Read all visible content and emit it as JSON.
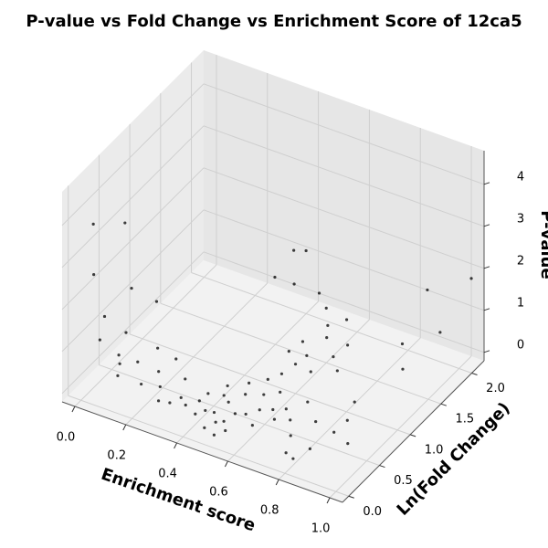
{
  "chart_data": {
    "type": "scatter3d",
    "title": "P-value vs Fold Change vs Enrichment Score of 12ca5",
    "x_label": "Enrichment score",
    "y_label": "Ln(Fold Change)",
    "z_label": "P-value",
    "color": "#000000",
    "grid": true,
    "xlim": [
      -0.05,
      1.05
    ],
    "ylim": [
      -0.1,
      2.2
    ],
    "zlim": [
      -0.2,
      4.8
    ],
    "xticks": [
      {
        "value": 0,
        "label": "0.0"
      },
      0.2,
      0.4,
      0.6,
      0.8,
      {
        "value": 1,
        "label": "1.0"
      }
    ],
    "yticks": [
      {
        "value": 0,
        "label": "0.0"
      },
      0.5,
      {
        "value": 1,
        "label": "1.0"
      },
      1.5,
      {
        "value": 2,
        "label": "2.0"
      }
    ],
    "zticks": [
      0,
      1,
      2,
      3,
      4
    ],
    "x": [
      0.45,
      0.5,
      0.52,
      0.48,
      0.55,
      0.42,
      0.58,
      0.47,
      0.5,
      0.53,
      0.4,
      0.6,
      0.38,
      0.44,
      0.56,
      0.62,
      0.35,
      0.65,
      0.46,
      0.51,
      0.49,
      0.54,
      0.57,
      0.6,
      0.43,
      0.39,
      0.66,
      0.7,
      0.32,
      0.3,
      0.6,
      0.62,
      0.58,
      0.65,
      0.7,
      0.55,
      0.63,
      0.68,
      0.72,
      0.6,
      0.66,
      0.74,
      0.05,
      0.1,
      0.15,
      0.2,
      0.25,
      0.08,
      0.12,
      0.18,
      0.22,
      0.28,
      0.02,
      0.3,
      0.14,
      0.24,
      0.75,
      0.8,
      0.85,
      0.9,
      0.95,
      0.78,
      0.88,
      0.82,
      0.92,
      0.72,
      0.5,
      0.45,
      0.85,
      0.9,
      0.95,
      0.4,
      0.35,
      0.0,
      0.1,
      0.4,
      1.0,
      0.9,
      0.05,
      0.15,
      0.2
    ],
    "y": [
      0.3,
      0.25,
      0.35,
      0.2,
      0.4,
      0.28,
      0.5,
      0.45,
      0.6,
      0.15,
      0.2,
      0.3,
      0.35,
      0.5,
      0.65,
      0.55,
      0.25,
      0.45,
      0.1,
      0.05,
      0.7,
      0.8,
      0.9,
      0.75,
      0.6,
      0.45,
      0.6,
      0.5,
      0.3,
      0.2,
      1.0,
      1.1,
      1.2,
      1.3,
      1.2,
      1.1,
      1.4,
      1.5,
      1.35,
      1.5,
      1.0,
      1.1,
      0.1,
      0.2,
      0.3,
      0.15,
      0.25,
      0.4,
      0.1,
      0.5,
      0.35,
      0.1,
      0.3,
      0.45,
      0.05,
      0.55,
      0.3,
      0.5,
      0.2,
      0.6,
      0.4,
      0.1,
      0.8,
      0.05,
      0.3,
      0.7,
      1.8,
      1.6,
      1.7,
      1.5,
      1.9,
      2.0,
      1.7,
      0.2,
      0.3,
      1.8,
      2.2,
      1.9,
      0.0,
      0.2,
      0.4
    ],
    "z": [
      0.05,
      0.02,
      0.1,
      0.03,
      0.08,
      0.06,
      0.1,
      0.12,
      0.15,
      0.01,
      0.05,
      0.07,
      0.1,
      0.14,
      0.2,
      0.12,
      0.08,
      0.1,
      0.0,
      0.01,
      0.25,
      0.3,
      0.35,
      0.2,
      0.2,
      0.15,
      0.15,
      0.12,
      0.12,
      0.1,
      0.5,
      0.6,
      0.7,
      0.8,
      0.6,
      0.55,
      0.9,
      1.0,
      0.7,
      1.1,
      0.45,
      0.5,
      1.2,
      0.8,
      0.6,
      0.4,
      0.3,
      1.0,
      0.5,
      0.7,
      0.45,
      0.25,
      1.4,
      0.3,
      0.9,
      0.5,
      0.15,
      0.3,
      0.2,
      0.4,
      0.25,
      0.1,
      0.5,
      0.12,
      0.6,
      0.3,
      0.8,
      1.2,
      0.5,
      0.3,
      0.7,
      1.3,
      1.0,
      3.7,
      3.8,
      1.6,
      1.65,
      1.6,
      2.9,
      2.5,
      2.0
    ]
  }
}
